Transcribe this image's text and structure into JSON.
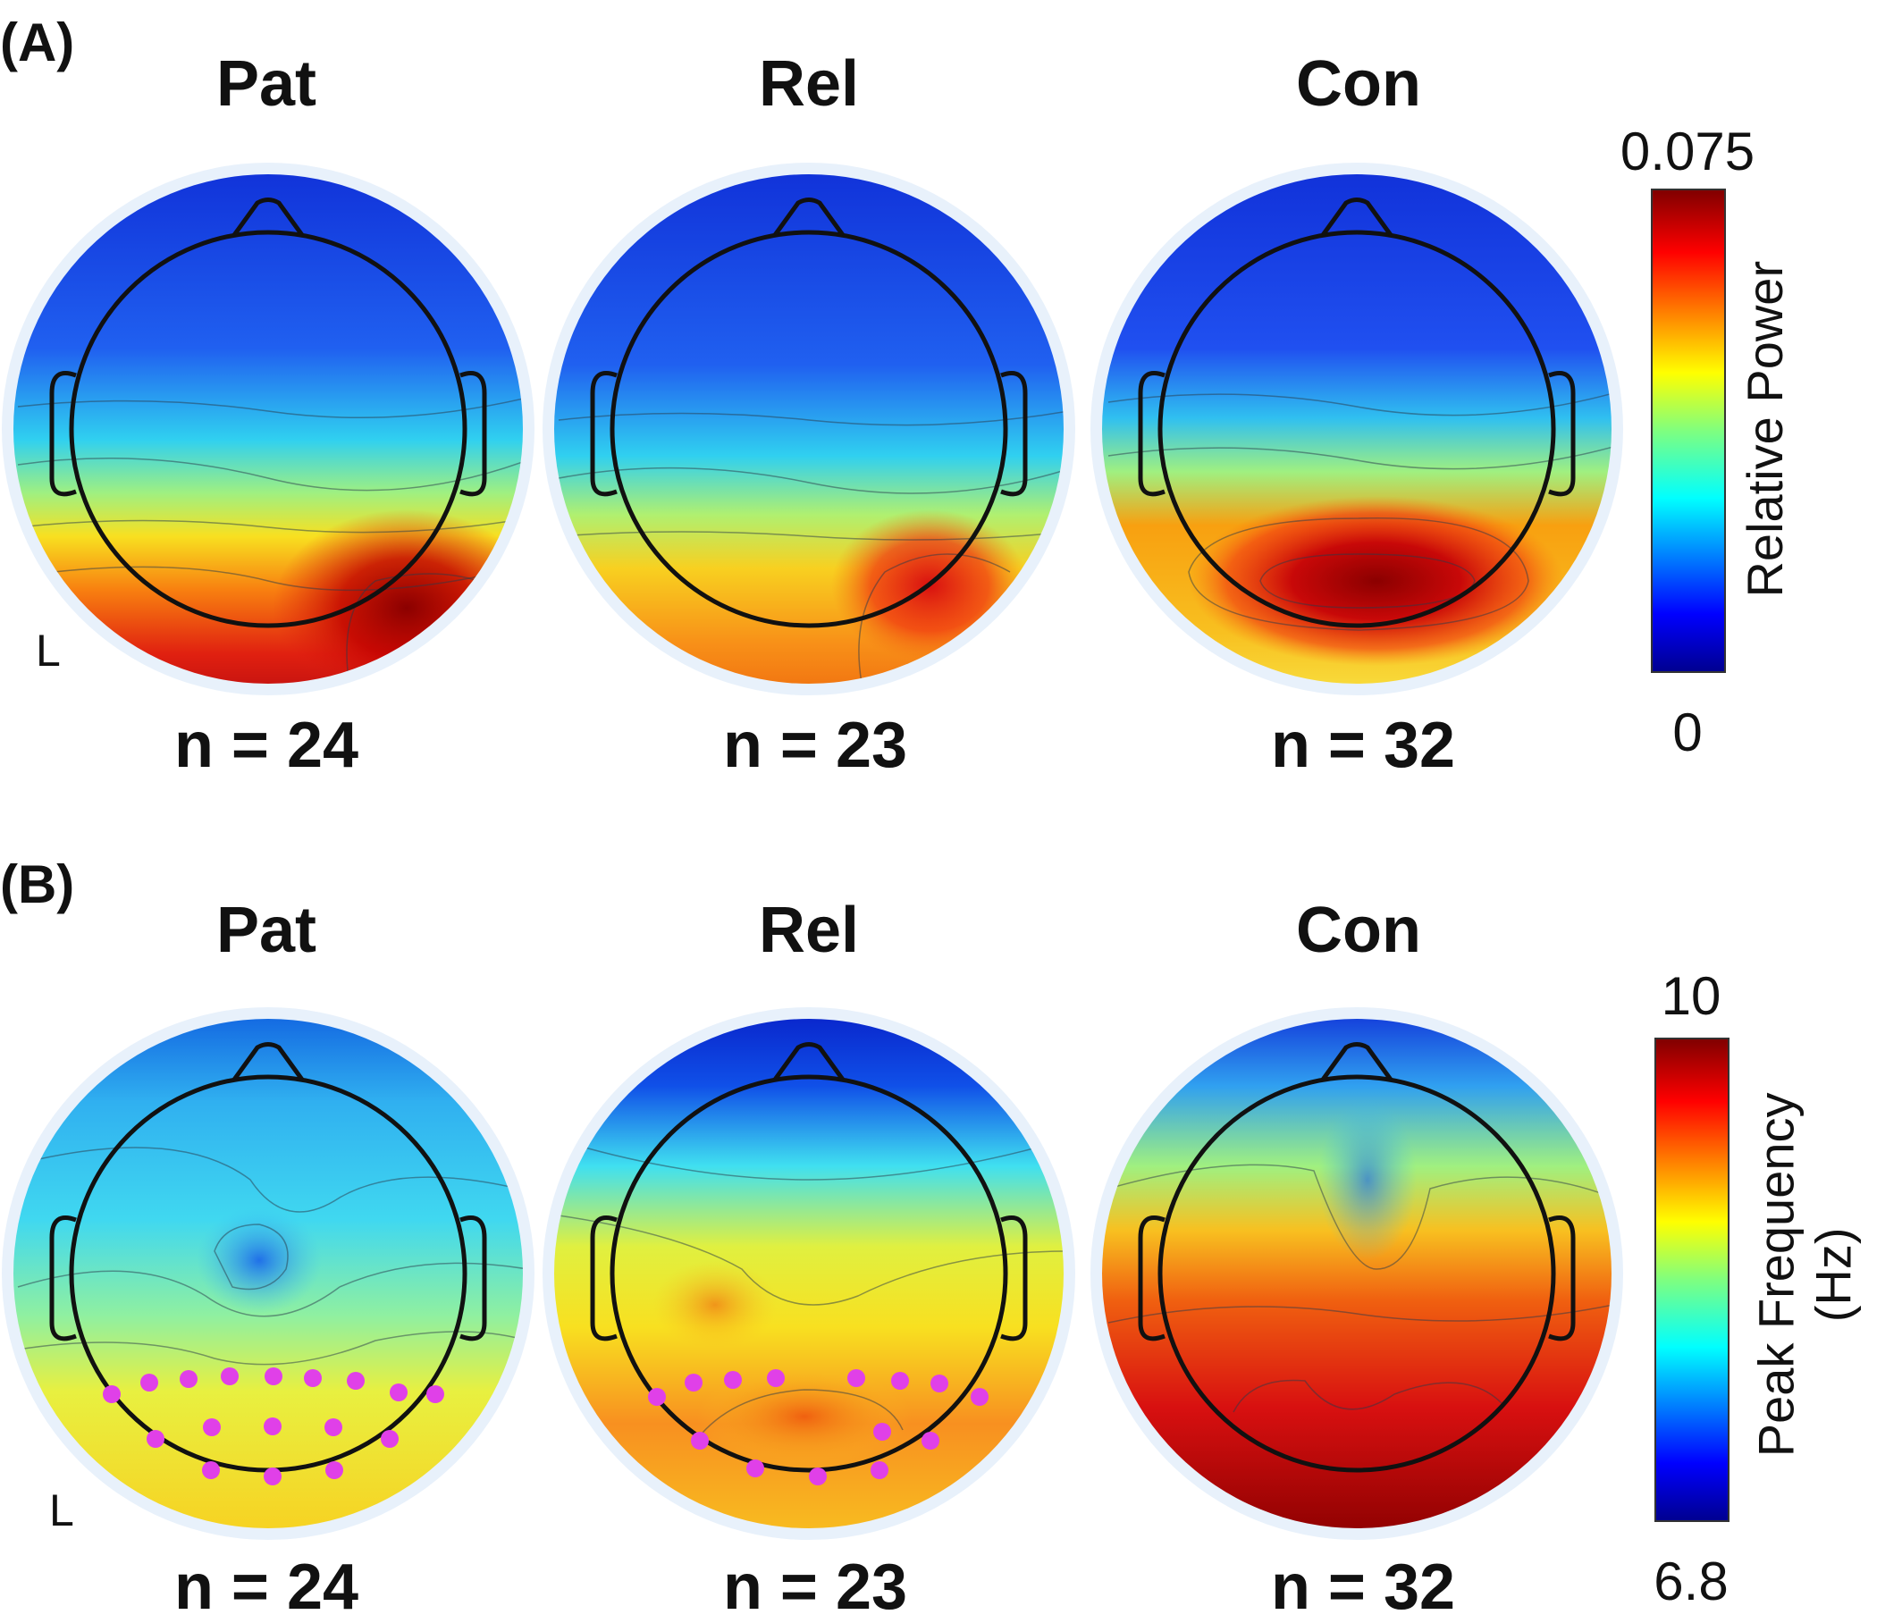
{
  "panels": [
    {
      "letter": "(A)",
      "side_marker": "L",
      "groups": [
        {
          "title": "Pat",
          "n": "n = 24"
        },
        {
          "title": "Rel",
          "n": "n = 23"
        },
        {
          "title": "Con",
          "n": "n = 32"
        }
      ],
      "colorbar": {
        "max": "0.075",
        "min": "0",
        "label": "Relative Power",
        "colormap": "jet"
      }
    },
    {
      "letter": "(B)",
      "side_marker": "L",
      "groups": [
        {
          "title": "Pat",
          "n": "n = 24"
        },
        {
          "title": "Rel",
          "n": "n = 23"
        },
        {
          "title": "Con",
          "n": "n = 32"
        }
      ],
      "colorbar": {
        "max": "10",
        "min": "6.8",
        "label_line1": "Peak Frequency",
        "label_line2": "(Hz)",
        "colormap": "jet"
      }
    }
  ],
  "colors": {
    "electrode_marker": "#e040e8",
    "head_outline": "#111111",
    "halo": "#e8f1fb"
  }
}
